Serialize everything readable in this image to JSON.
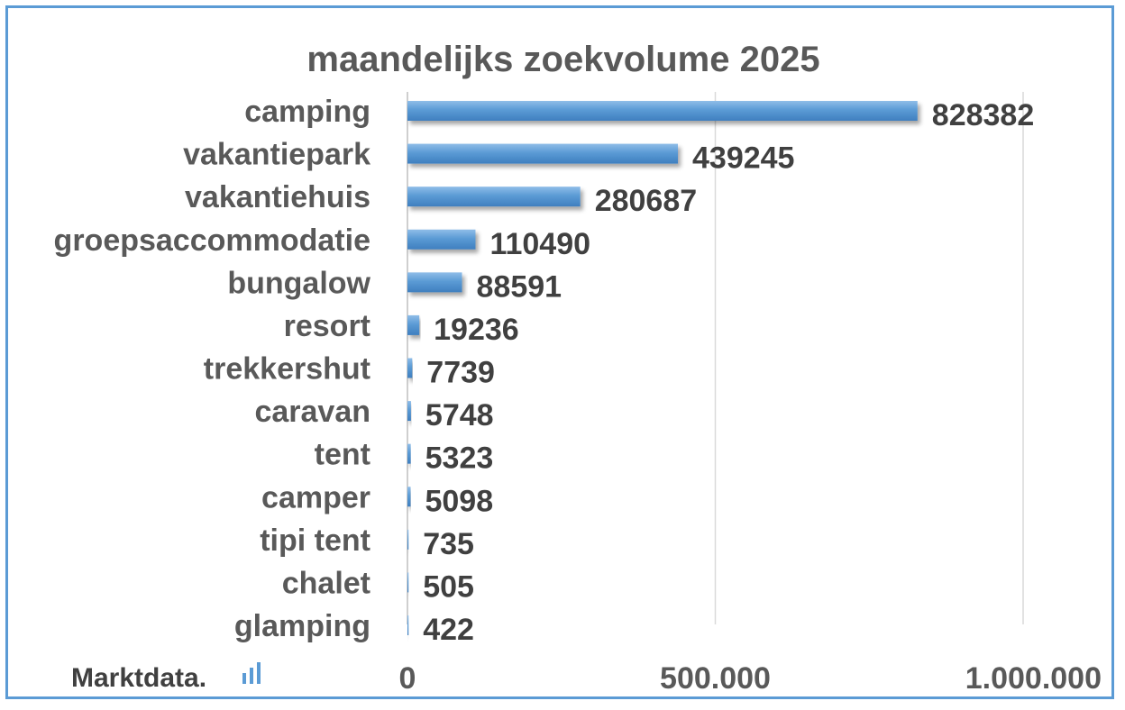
{
  "chart_data": {
    "type": "bar",
    "orientation": "horizontal",
    "title": "maandelijks zoekvolume 2025",
    "categories": [
      "camping",
      "vakantiepark",
      "vakantiehuis",
      "groepsaccommodatie",
      "bungalow",
      "resort",
      "trekkershut",
      "caravan",
      "tent",
      "camper",
      "tipi tent",
      "chalet",
      "glamping"
    ],
    "values": [
      828382,
      439245,
      280687,
      110490,
      88591,
      19236,
      7739,
      5748,
      5323,
      5098,
      735,
      505,
      422
    ],
    "value_labels": [
      "828382",
      "439245",
      "280687",
      "110490",
      "88591",
      "19236",
      "7739",
      "5748",
      "5323",
      "5098",
      "735",
      "505",
      "422"
    ],
    "xlim": [
      0,
      1000000
    ],
    "x_ticks": [
      0,
      500000,
      1000000
    ],
    "x_tick_labels": [
      "0",
      "500.000",
      "1.000.000"
    ],
    "grid": true,
    "legend": "none",
    "bar_color": "#5b9bd5"
  },
  "brand": {
    "text": "Marktdata.",
    "logo_icon": "bar-signal-icon",
    "accent": "#5b9bd5"
  }
}
